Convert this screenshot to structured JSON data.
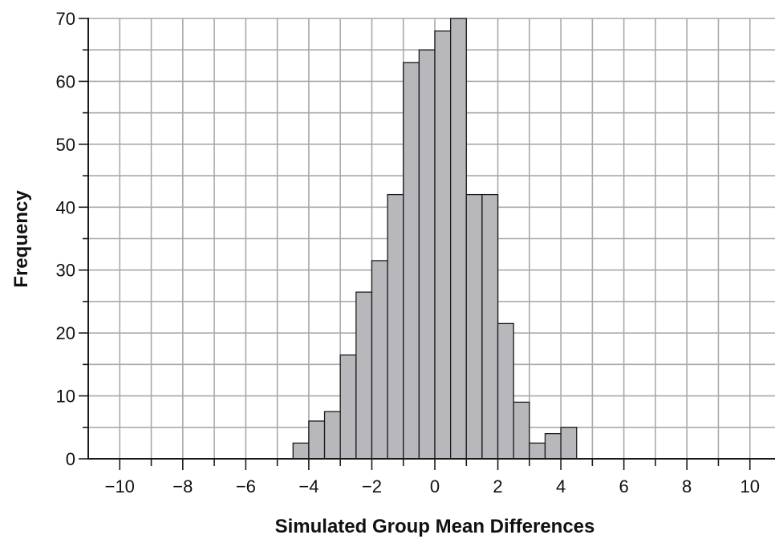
{
  "chart_data": {
    "type": "bar",
    "title": "",
    "xlabel": "Simulated Group Mean Differences",
    "ylabel": "Frequency",
    "xlim": [
      -11,
      11
    ],
    "ylim": [
      0,
      70
    ],
    "bin_width": 1,
    "x_ticks": [
      -10,
      -8,
      -6,
      -4,
      -2,
      0,
      2,
      4,
      6,
      8,
      10
    ],
    "x_tick_labels": [
      "−10",
      "−8",
      "−6",
      "−4",
      "−2",
      "0",
      "2",
      "4",
      "6",
      "8",
      "10"
    ],
    "y_ticks": [
      0,
      10,
      20,
      30,
      40,
      50,
      60,
      70
    ],
    "y_tick_labels": [
      "0",
      "10",
      "20",
      "30",
      "40",
      "50",
      "60",
      "70"
    ],
    "grid": true,
    "bins": [
      {
        "x0": -4.5,
        "x1": -4.0,
        "value": 2.5
      },
      {
        "x0": -4.0,
        "x1": -3.5,
        "value": 6
      },
      {
        "x0": -3.5,
        "x1": -3.0,
        "value": 7.5
      },
      {
        "x0": -3.0,
        "x1": -2.5,
        "value": 16.5
      },
      {
        "x0": -2.5,
        "x1": -2.0,
        "value": 26.5
      },
      {
        "x0": -2.0,
        "x1": -1.5,
        "value": 31.5
      },
      {
        "x0": -1.5,
        "x1": -1.0,
        "value": 42
      },
      {
        "x0": -1.0,
        "x1": -0.5,
        "value": 63
      },
      {
        "x0": -0.5,
        "x1": 0.0,
        "value": 65
      },
      {
        "x0": 0.0,
        "x1": 0.5,
        "value": 68
      },
      {
        "x0": 0.5,
        "x1": 1.0,
        "value": 70
      },
      {
        "x0": 1.0,
        "x1": 1.5,
        "value": 42
      },
      {
        "x0": 1.5,
        "x1": 2.0,
        "value": 42
      },
      {
        "x0": 2.0,
        "x1": 2.5,
        "value": 21.5
      },
      {
        "x0": 2.5,
        "x1": 3.0,
        "value": 9
      },
      {
        "x0": 3.0,
        "x1": 3.5,
        "value": 2.5
      },
      {
        "x0": 3.5,
        "x1": 4.0,
        "value": 4
      },
      {
        "x0": 4.0,
        "x1": 4.5,
        "value": 5
      }
    ],
    "colors": {
      "bar_fill": "#b8b8bc",
      "bar_stroke": "#1a1a1a",
      "grid": "#a9a9a9",
      "axis": "#1a1a1a"
    }
  }
}
